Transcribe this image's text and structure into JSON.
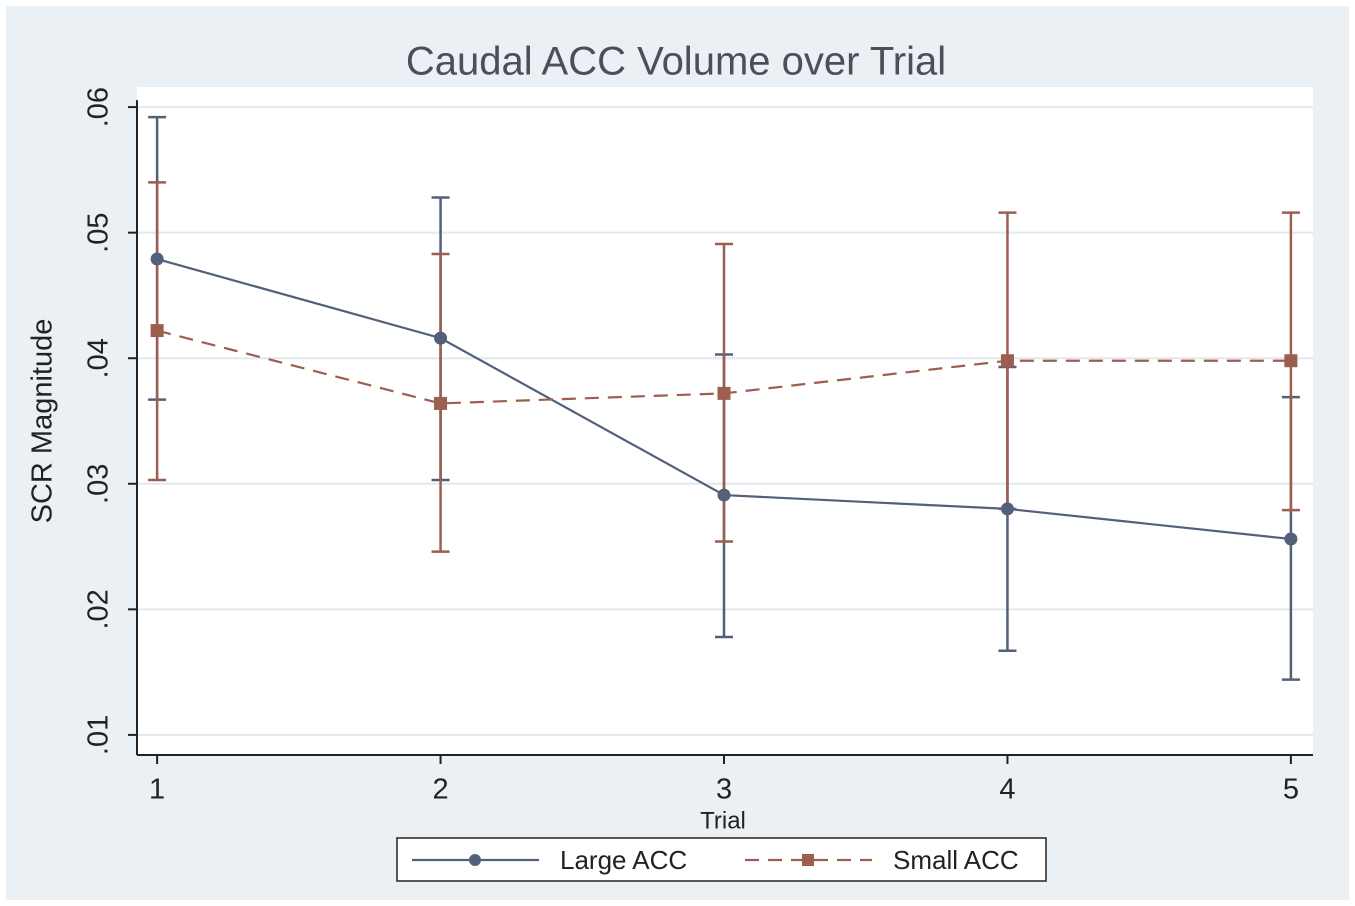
{
  "chart_data": {
    "type": "line",
    "title": "Caudal ACC Volume over Trial",
    "x_label": "Trial",
    "y_label": "SCR Magnitude",
    "x": [
      1,
      2,
      3,
      4,
      5
    ],
    "series": [
      {
        "name": "Large ACC",
        "color": "#53607a",
        "line_style": "solid",
        "marker": "circle",
        "values": [
          0.0479,
          0.0416,
          0.0291,
          0.028,
          0.0256
        ],
        "ci_low": [
          0.0367,
          0.0303,
          0.0178,
          0.0167,
          0.0144
        ],
        "ci_high": [
          0.0592,
          0.0528,
          0.0403,
          0.0393,
          0.0369
        ]
      },
      {
        "name": "Small ACC",
        "color": "#9c5e4f",
        "line_style": "dash",
        "marker": "square",
        "values": [
          0.0422,
          0.0364,
          0.0372,
          0.0398,
          0.0398
        ],
        "ci_low": [
          0.0303,
          0.0246,
          0.0254,
          0.028,
          0.0279
        ],
        "ci_high": [
          0.054,
          0.0483,
          0.0491,
          0.0516,
          0.0516
        ]
      }
    ],
    "xlim": [
      0.929,
      5.078
    ],
    "xticks": [
      1,
      2,
      3,
      4,
      5
    ],
    "ylim": [
      0.0084,
      0.0616
    ],
    "yticks": [
      {
        "value": 0.01,
        "label": ".01"
      },
      {
        "value": 0.02,
        "label": ".02"
      },
      {
        "value": 0.03,
        "label": ".03"
      },
      {
        "value": 0.04,
        "label": ".04"
      },
      {
        "value": 0.05,
        "label": ".05"
      },
      {
        "value": 0.06,
        "label": ".06"
      }
    ],
    "grid": true,
    "legend": "bottom"
  }
}
